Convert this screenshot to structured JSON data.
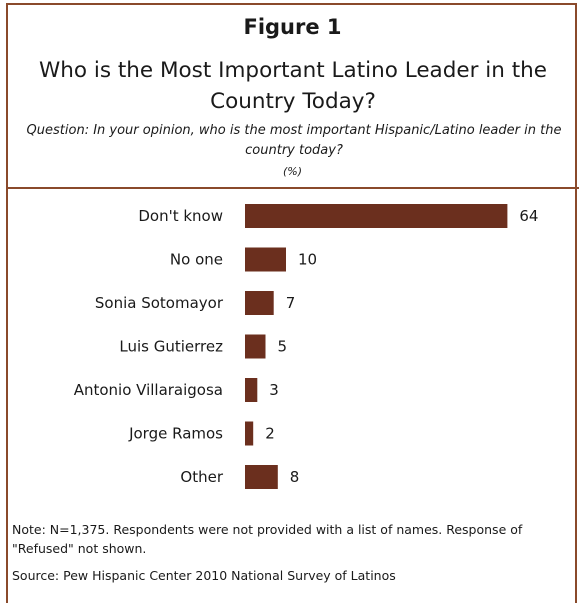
{
  "figure_label": "Figure 1",
  "title": "Who is the Most Important Latino Leader in the Country Today?",
  "question": "Question: In your opinion, who is the most important Hispanic/Latino leader in the country today?",
  "unit": "(%)",
  "colors": {
    "bar": "#6b2f1e",
    "border": "#8a4a2b"
  },
  "chart_data": {
    "type": "bar",
    "orientation": "horizontal",
    "title": "Who is the Most Important Latino Leader in the Country Today?",
    "categories": [
      "Don't know",
      "No one",
      "Sonia Sotomayor",
      "Luis Gutierrez",
      "Antonio Villaraigosa",
      "Jorge Ramos",
      "Other"
    ],
    "values": [
      64,
      10,
      7,
      5,
      3,
      2,
      8
    ],
    "xlim": [
      0,
      70
    ],
    "grid": false,
    "legend": "none"
  },
  "notes": {
    "note": "Note: N=1,375. Respondents were not provided with a list of names. Response of \"Refused\" not shown.",
    "source": "Source: Pew Hispanic Center 2010 National Survey of Latinos"
  }
}
